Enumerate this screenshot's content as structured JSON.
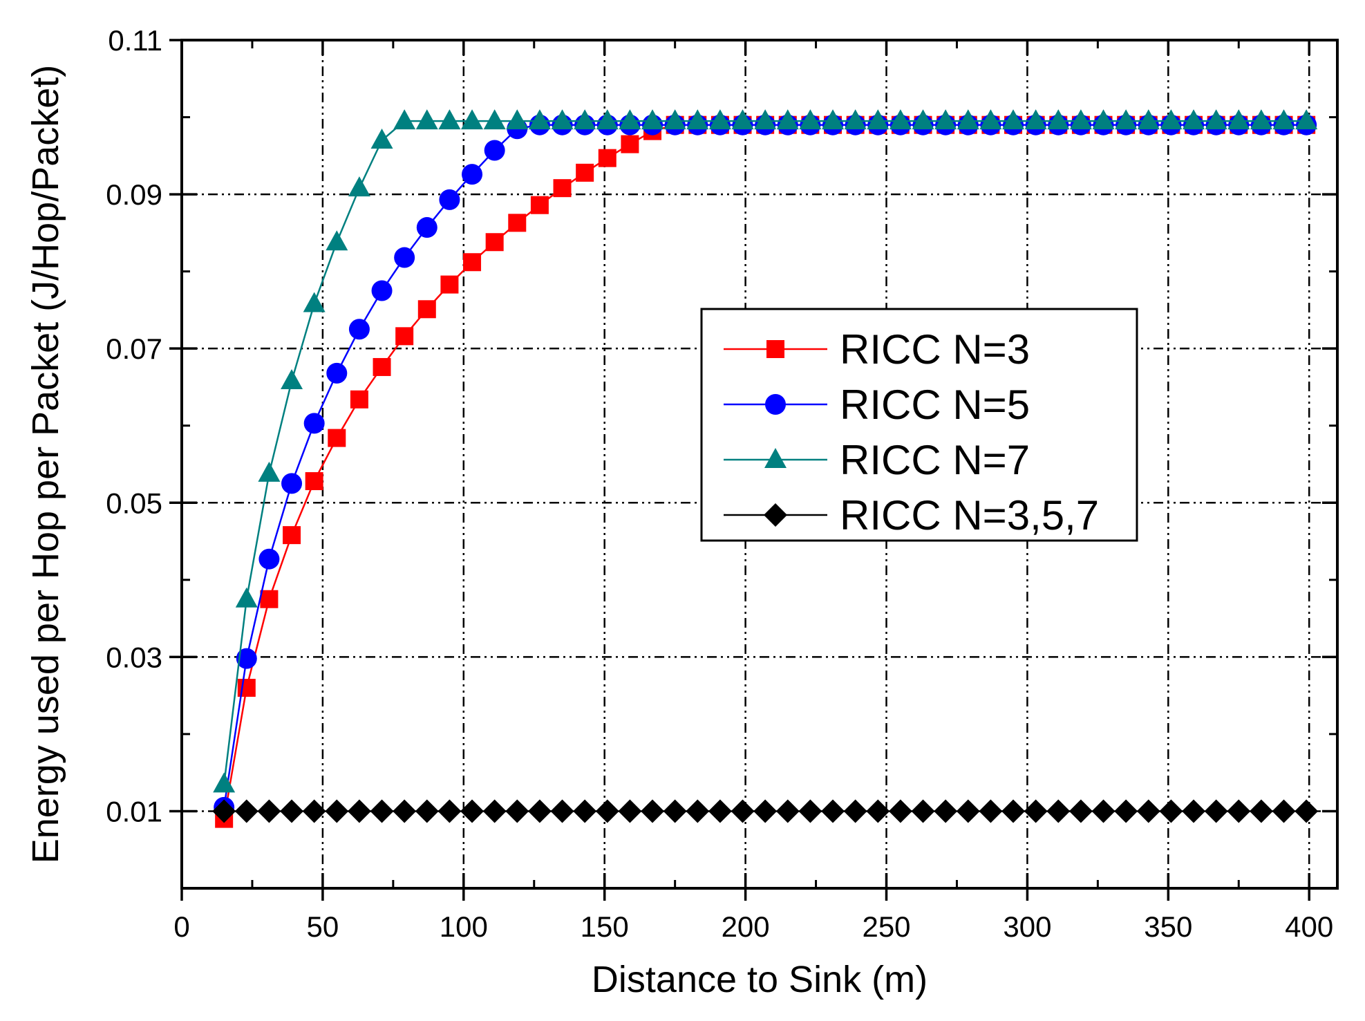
{
  "chart_data": {
    "type": "line",
    "title": "",
    "xlabel": "Distance to Sink (m)",
    "ylabel": "Energy used per Hop per Packet (J/Hop/Packet)",
    "xlim": [
      0,
      410
    ],
    "ylim": [
      0,
      0.11
    ],
    "xticks": [
      0,
      50,
      100,
      150,
      200,
      250,
      300,
      350,
      400
    ],
    "xtick_labels": [
      "0",
      "50",
      "100",
      "150",
      "200",
      "250",
      "300",
      "350",
      "400"
    ],
    "yticks": [
      0.01,
      0.03,
      0.05,
      0.07,
      0.09,
      0.11
    ],
    "ytick_labels": [
      "0.01",
      "0.03",
      "0.05",
      "0.07",
      "0.09",
      "0.11"
    ],
    "grid": true,
    "legend_position": "center-right",
    "x": [
      15,
      23,
      31,
      39,
      47,
      55,
      63,
      71,
      79,
      87,
      95,
      103,
      111,
      119,
      127,
      135,
      143,
      151,
      159,
      167,
      175,
      183,
      191,
      199,
      207,
      215,
      223,
      231,
      239,
      247,
      255,
      263,
      271,
      279,
      287,
      295,
      303,
      311,
      319,
      327,
      335,
      343,
      351,
      359,
      367,
      375,
      383,
      391,
      399
    ],
    "series": [
      {
        "name": "RICC N=3",
        "color": "#ff0000",
        "marker": "square",
        "values": [
          0.009,
          0.026,
          0.0375,
          0.0458,
          0.0528,
          0.0584,
          0.0634,
          0.0676,
          0.0716,
          0.0751,
          0.0783,
          0.0812,
          0.0838,
          0.0863,
          0.0886,
          0.0908,
          0.0928,
          0.0947,
          0.0965,
          0.0982,
          0.099,
          0.099,
          0.099,
          0.099,
          0.099,
          0.099,
          0.099,
          0.099,
          0.099,
          0.099,
          0.099,
          0.099,
          0.099,
          0.099,
          0.099,
          0.099,
          0.099,
          0.099,
          0.099,
          0.099,
          0.099,
          0.099,
          0.099,
          0.099,
          0.099,
          0.099,
          0.099,
          0.099,
          0.099
        ]
      },
      {
        "name": "RICC N=5",
        "color": "#0000ff",
        "marker": "circle",
        "values": [
          0.0105,
          0.0298,
          0.0427,
          0.0525,
          0.0603,
          0.0668,
          0.0725,
          0.0775,
          0.0818,
          0.0857,
          0.0893,
          0.0926,
          0.0957,
          0.0985,
          0.099,
          0.099,
          0.099,
          0.099,
          0.099,
          0.099,
          0.099,
          0.099,
          0.099,
          0.099,
          0.099,
          0.099,
          0.099,
          0.099,
          0.099,
          0.099,
          0.099,
          0.099,
          0.099,
          0.099,
          0.099,
          0.099,
          0.099,
          0.099,
          0.099,
          0.099,
          0.099,
          0.099,
          0.099,
          0.099,
          0.099,
          0.099,
          0.099,
          0.099,
          0.099
        ]
      },
      {
        "name": "RICC N=7",
        "color": "#008080",
        "marker": "triangle",
        "values": [
          0.0135,
          0.0375,
          0.0538,
          0.0658,
          0.0758,
          0.0838,
          0.0908,
          0.097,
          0.0995,
          0.0995,
          0.0995,
          0.0995,
          0.0995,
          0.0995,
          0.0995,
          0.0995,
          0.0995,
          0.0995,
          0.0995,
          0.0995,
          0.0995,
          0.0995,
          0.0995,
          0.0995,
          0.0995,
          0.0995,
          0.0995,
          0.0995,
          0.0995,
          0.0995,
          0.0995,
          0.0995,
          0.0995,
          0.0995,
          0.0995,
          0.0995,
          0.0995,
          0.0995,
          0.0995,
          0.0995,
          0.0995,
          0.0995,
          0.0995,
          0.0995,
          0.0995,
          0.0995,
          0.0995,
          0.0995,
          0.0995
        ]
      },
      {
        "name": "RICC N=3,5,7",
        "color": "#000000",
        "marker": "diamond",
        "values": [
          0.01,
          0.01,
          0.01,
          0.01,
          0.01,
          0.01,
          0.01,
          0.01,
          0.01,
          0.01,
          0.01,
          0.01,
          0.01,
          0.01,
          0.01,
          0.01,
          0.01,
          0.01,
          0.01,
          0.01,
          0.01,
          0.01,
          0.01,
          0.01,
          0.01,
          0.01,
          0.01,
          0.01,
          0.01,
          0.01,
          0.01,
          0.01,
          0.01,
          0.01,
          0.01,
          0.01,
          0.01,
          0.01,
          0.01,
          0.01,
          0.01,
          0.01,
          0.01,
          0.01,
          0.01,
          0.01,
          0.01,
          0.01,
          0.01
        ]
      }
    ]
  }
}
